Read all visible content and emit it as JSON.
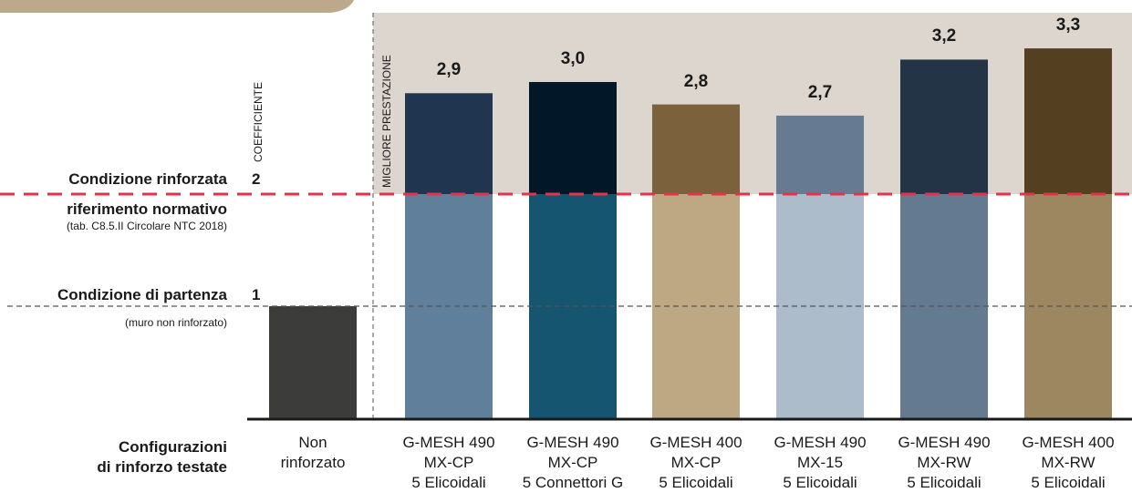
{
  "chart_data": {
    "type": "bar",
    "ylabel": "COEFFICIENTE",
    "best_zone_label": "MIGLIORE PRESTAZIONE",
    "yticks": [
      1,
      2
    ],
    "ylim": [
      0,
      3.6
    ],
    "reference_lines": [
      {
        "value": 1,
        "title": "Condizione di partenza",
        "subtitle": "(muro non rinforzato)",
        "style": "dashed-gray"
      },
      {
        "value": 2,
        "title_line1": "Condizione rinforzata",
        "title_line2": "riferimento normativo",
        "subtitle": "(tab. C8.5.II Circolare NTC 2018)",
        "style": "dashed-red"
      }
    ],
    "xaxis_title": [
      "Configurazioni",
      "di rinforzo testate"
    ],
    "categories": [
      {
        "lines": [
          "Non",
          "rinforzato"
        ],
        "value": 1.0,
        "value_label": "",
        "color_low": "#3c3c3b",
        "color_high": "#3c3c3b"
      },
      {
        "lines": [
          "G-MESH 490",
          "MX-CP",
          "5 Elicoidali"
        ],
        "value": 2.9,
        "value_label": "2,9",
        "color_low": "#607f9b",
        "color_high": "#1f3550"
      },
      {
        "lines": [
          "G-MESH 490",
          "MX-CP",
          "5 Connettori G"
        ],
        "value": 3.0,
        "value_label": "3,0",
        "color_low": "#165570",
        "color_high": "#021829"
      },
      {
        "lines": [
          "G-MESH 400",
          "MX-CP",
          "5 Elicoidali"
        ],
        "value": 2.8,
        "value_label": "2,8",
        "color_low": "#bea883",
        "color_high": "#7c623c"
      },
      {
        "lines": [
          "G-MESH 490",
          "MX-15",
          "5 Elicoidali"
        ],
        "value": 2.7,
        "value_label": "2,7",
        "color_low": "#adbccb",
        "color_high": "#667a91"
      },
      {
        "lines": [
          "G-MESH 490",
          "MX-RW",
          "5 Elicoidali"
        ],
        "value": 3.2,
        "value_label": "3,2",
        "color_low": "#647a90",
        "color_high": "#233447"
      },
      {
        "lines": [
          "G-MESH 400",
          "MX-RW",
          "5 Elicoidali"
        ],
        "value": 3.3,
        "value_label": "3,3",
        "color_low": "#9c8760",
        "color_high": "#553f21"
      }
    ],
    "colors": {
      "best_zone": "#dcd6ce",
      "reference_red": "#e0334c",
      "top_tab": "#bca98b"
    }
  }
}
